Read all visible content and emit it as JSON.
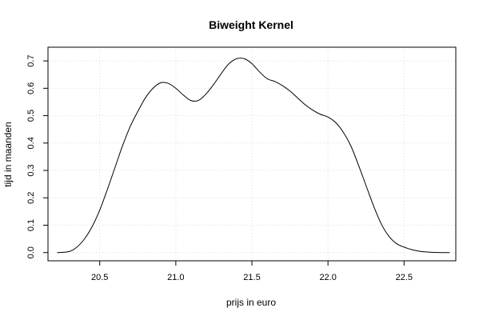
{
  "chart_data": {
    "type": "line",
    "title": "Biweight Kernel",
    "xlabel": "prijs in euro",
    "ylabel": "tijd in maanden",
    "xlim": [
      20.16,
      22.84
    ],
    "ylim": [
      -0.03,
      0.75
    ],
    "xticks": [
      20.5,
      21.0,
      21.5,
      22.0,
      22.5
    ],
    "xtick_labels": [
      "20.5",
      "21.0",
      "21.5",
      "22.0",
      "22.5"
    ],
    "yticks": [
      0.0,
      0.1,
      0.2,
      0.3,
      0.4,
      0.5,
      0.6,
      0.7
    ],
    "ytick_labels": [
      "0.0",
      "0.1",
      "0.2",
      "0.3",
      "0.4",
      "0.5",
      "0.6",
      "0.7"
    ],
    "grid": true,
    "series": [
      {
        "x": [
          20.22,
          20.3,
          20.35,
          20.4,
          20.45,
          20.5,
          20.55,
          20.6,
          20.65,
          20.7,
          20.75,
          20.8,
          20.85,
          20.9,
          20.95,
          21.0,
          21.05,
          21.1,
          21.15,
          21.2,
          21.25,
          21.3,
          21.35,
          21.4,
          21.45,
          21.5,
          21.55,
          21.6,
          21.65,
          21.7,
          21.75,
          21.8,
          21.85,
          21.9,
          21.95,
          22.0,
          22.05,
          22.1,
          22.15,
          22.2,
          22.25,
          22.3,
          22.35,
          22.4,
          22.45,
          22.5,
          22.55,
          22.6,
          22.65,
          22.7,
          22.75,
          22.8
        ],
        "y": [
          0.0,
          0.004,
          0.02,
          0.05,
          0.095,
          0.155,
          0.23,
          0.31,
          0.39,
          0.46,
          0.515,
          0.565,
          0.6,
          0.62,
          0.618,
          0.6,
          0.575,
          0.555,
          0.556,
          0.58,
          0.615,
          0.655,
          0.69,
          0.708,
          0.708,
          0.69,
          0.66,
          0.635,
          0.625,
          0.61,
          0.59,
          0.565,
          0.54,
          0.52,
          0.505,
          0.495,
          0.475,
          0.44,
          0.39,
          0.32,
          0.245,
          0.17,
          0.105,
          0.06,
          0.033,
          0.02,
          0.011,
          0.005,
          0.002,
          0.0005,
          0.0,
          0.0
        ]
      }
    ]
  }
}
